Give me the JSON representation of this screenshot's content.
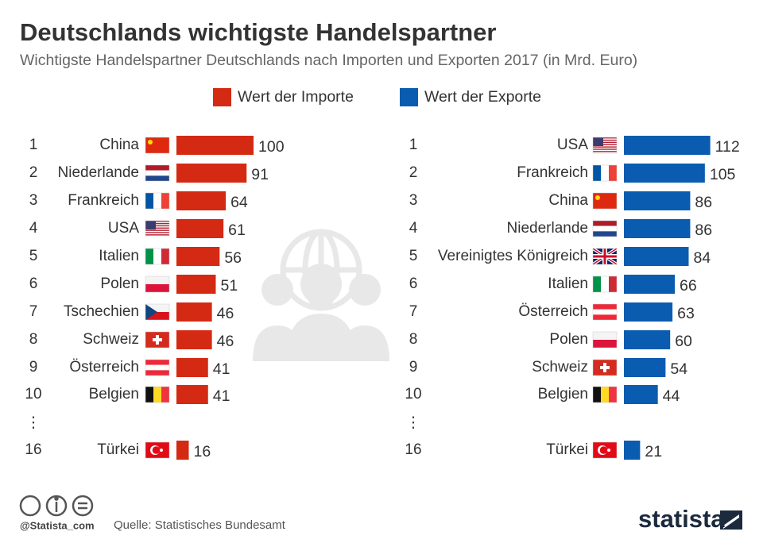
{
  "title": "Deutschlands wichtigste Handelspartner",
  "subtitle": "Wichtigste Handelspartner Deutschlands nach Importen und Exporten 2017 (in Mrd. Euro)",
  "ellipsis": "⋮",
  "handle": "@Statista_com",
  "source": "Quelle: Statistisches Bundesamt",
  "brand": "statista",
  "chart_data": [
    {
      "type": "bar",
      "orientation": "horizontal",
      "ranks": [
        1,
        2,
        3,
        4,
        5,
        6,
        7,
        8,
        9,
        10,
        16
      ],
      "categories": [
        "China",
        "Niederlande",
        "Frankreich",
        "USA",
        "Italien",
        "Polen",
        "Tschechien",
        "Schweiz",
        "Österreich",
        "Belgien",
        "Türkei"
      ],
      "series": [
        {
          "name": "Wert der Importe",
          "color": "#d42a13",
          "values": [
            100,
            91,
            64,
            61,
            56,
            51,
            46,
            46,
            41,
            41,
            16
          ]
        }
      ]
    },
    {
      "type": "bar",
      "orientation": "horizontal",
      "ranks": [
        1,
        2,
        3,
        4,
        5,
        6,
        7,
        8,
        9,
        10,
        16
      ],
      "categories": [
        "USA",
        "Frankreich",
        "China",
        "Niederlande",
        "Vereinigtes Königreich",
        "Italien",
        "Österreich",
        "Polen",
        "Schweiz",
        "Belgien",
        "Türkei"
      ],
      "series": [
        {
          "name": "Wert der Exporte",
          "color": "#0a5cb0",
          "values": [
            112,
            105,
            86,
            86,
            84,
            66,
            63,
            60,
            54,
            44,
            21
          ]
        }
      ]
    }
  ]
}
